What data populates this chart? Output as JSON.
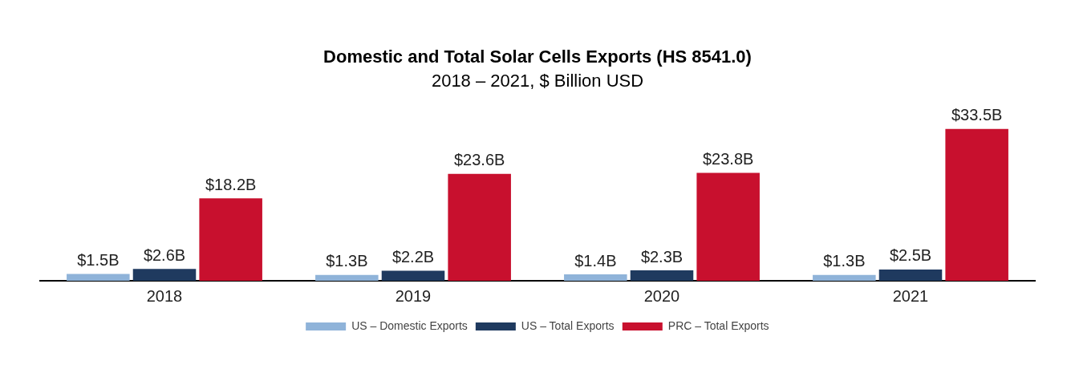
{
  "chart_data": {
    "type": "bar",
    "title": "Domestic and Total Solar Cells Exports (HS 8541.0)",
    "subtitle": "2018 – 2021, $ Billion USD",
    "categories": [
      "2018",
      "2019",
      "2020",
      "2021"
    ],
    "series": [
      {
        "name": "US – Domestic Exports",
        "color": "#8fb3d9",
        "values": [
          1.5,
          1.3,
          1.4,
          1.3
        ],
        "value_labels": [
          "$1.5B",
          "$1.3B",
          "$1.4B",
          "$1.3B"
        ]
      },
      {
        "name": "US – Total Exports",
        "color": "#1f3a5f",
        "values": [
          2.6,
          2.2,
          2.3,
          2.5
        ],
        "value_labels": [
          "$2.6B",
          "$2.2B",
          "$2.3B",
          "$2.5B"
        ]
      },
      {
        "name": "PRC – Total Exports",
        "color": "#c8102e",
        "values": [
          18.2,
          23.6,
          23.8,
          33.5
        ],
        "value_labels": [
          "$18.2B",
          "$23.6B",
          "$23.8B",
          "$33.5B"
        ]
      }
    ],
    "legend": "bottom",
    "grid": false
  }
}
